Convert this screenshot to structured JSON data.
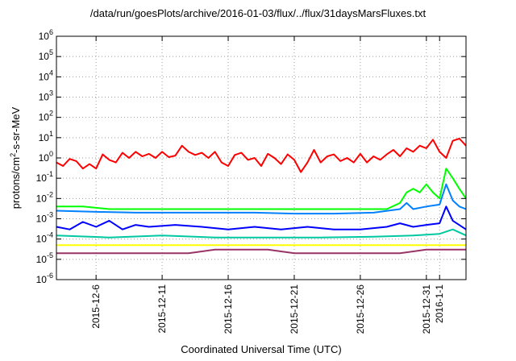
{
  "chart_data": {
    "type": "line",
    "title": "/data/run/goesPlots/archive/2016-01-03/flux/../flux/31daysMarsFluxes.txt",
    "xlabel": "Coordinated Universal Time (UTC)",
    "ylabel_parts": {
      "base": "protons/cm",
      "sup": "2",
      "rest": "-s-sr-MeV"
    },
    "y_scale": "log",
    "ylim": [
      1e-06,
      1000000.0
    ],
    "x_range": [
      "2015-12-03",
      "2016-01-03"
    ],
    "y_ticks": [
      {
        "exp": -6,
        "value": 1e-06
      },
      {
        "exp": -5,
        "value": 1e-05
      },
      {
        "exp": -4,
        "value": 0.0001
      },
      {
        "exp": -3,
        "value": 0.001
      },
      {
        "exp": -2,
        "value": 0.01
      },
      {
        "exp": -1,
        "value": 0.1
      },
      {
        "exp": 0,
        "value": 1
      },
      {
        "exp": 1,
        "value": 10
      },
      {
        "exp": 2,
        "value": 100
      },
      {
        "exp": 3,
        "value": 1000
      },
      {
        "exp": 4,
        "value": 10000.0
      },
      {
        "exp": 5,
        "value": 100000.0
      },
      {
        "exp": 6,
        "value": 1000000.0
      }
    ],
    "x_ticks": [
      {
        "date": "2015-12-06",
        "label": "2015-12-6"
      },
      {
        "date": "2015-12-11",
        "label": "2015-12-11"
      },
      {
        "date": "2015-12-16",
        "label": "2015-12-16"
      },
      {
        "date": "2015-12-21",
        "label": "2015-12-21"
      },
      {
        "date": "2015-12-26",
        "label": "2015-12-26"
      },
      {
        "date": "2015-12-31",
        "label": "2015-12-31"
      },
      {
        "date": "2016-01-01",
        "label": "2016-1-1"
      }
    ],
    "grid": true,
    "legend": "none",
    "series": [
      {
        "color": "#ff0000",
        "values": [
          [
            "2015-12-03",
            0.6
          ],
          [
            "2015-12-03.5",
            0.4
          ],
          [
            "2015-12-04",
            0.9
          ],
          [
            "2015-12-04.5",
            0.7
          ],
          [
            "2015-12-05",
            0.3
          ],
          [
            "2015-12-05.5",
            0.5
          ],
          [
            "2015-12-06",
            0.3
          ],
          [
            "2015-12-06.5",
            1.5
          ],
          [
            "2015-12-07",
            0.8
          ],
          [
            "2015-12-07.5",
            0.6
          ],
          [
            "2015-12-08",
            1.8
          ],
          [
            "2015-12-08.5",
            1.0
          ],
          [
            "2015-12-09",
            2.0
          ],
          [
            "2015-12-09.5",
            1.2
          ],
          [
            "2015-12-10",
            1.6
          ],
          [
            "2015-12-10.5",
            1.0
          ],
          [
            "2015-12-11",
            2.0
          ],
          [
            "2015-12-11.5",
            1.1
          ],
          [
            "2015-12-12",
            1.3
          ],
          [
            "2015-12-12.5",
            4.0
          ],
          [
            "2015-12-13",
            2.0
          ],
          [
            "2015-12-13.5",
            1.4
          ],
          [
            "2015-12-14",
            1.8
          ],
          [
            "2015-12-14.5",
            1.0
          ],
          [
            "2015-12-15",
            2.0
          ],
          [
            "2015-12-15.5",
            0.6
          ],
          [
            "2015-12-16",
            0.4
          ],
          [
            "2015-12-16.5",
            1.4
          ],
          [
            "2015-12-17",
            1.8
          ],
          [
            "2015-12-17.5",
            0.8
          ],
          [
            "2015-12-18",
            1.0
          ],
          [
            "2015-12-18.5",
            0.4
          ],
          [
            "2015-12-19",
            1.6
          ],
          [
            "2015-12-19.5",
            1.0
          ],
          [
            "2015-12-20",
            0.5
          ],
          [
            "2015-12-20.5",
            1.5
          ],
          [
            "2015-12-21",
            0.8
          ],
          [
            "2015-12-21.5",
            0.2
          ],
          [
            "2015-12-22",
            0.6
          ],
          [
            "2015-12-22.5",
            2.5
          ],
          [
            "2015-12-23",
            0.6
          ],
          [
            "2015-12-23.5",
            1.2
          ],
          [
            "2015-12-24",
            1.5
          ],
          [
            "2015-12-24.5",
            0.7
          ],
          [
            "2015-12-25",
            1.0
          ],
          [
            "2015-12-25.5",
            0.6
          ],
          [
            "2015-12-26",
            1.6
          ],
          [
            "2015-12-26.5",
            0.6
          ],
          [
            "2015-12-27",
            1.2
          ],
          [
            "2015-12-27.5",
            0.8
          ],
          [
            "2015-12-28",
            1.5
          ],
          [
            "2015-12-28.5",
            2.5
          ],
          [
            "2015-12-29",
            1.2
          ],
          [
            "2015-12-29.5",
            3.0
          ],
          [
            "2015-12-30",
            2.0
          ],
          [
            "2015-12-30.5",
            4.0
          ],
          [
            "2015-12-31",
            3.0
          ],
          [
            "2015-12-31.5",
            8.0
          ],
          [
            "2016-01-01",
            2.0
          ],
          [
            "2016-01-01.5",
            1.0
          ],
          [
            "2016-01-02",
            7.0
          ],
          [
            "2016-01-02.5",
            9.0
          ],
          [
            "2016-01-03",
            4.0
          ]
        ]
      },
      {
        "color": "#00ff00",
        "values": [
          [
            "2015-12-03",
            0.004
          ],
          [
            "2015-12-05",
            0.004
          ],
          [
            "2015-12-07",
            0.003
          ],
          [
            "2015-12-10",
            0.003
          ],
          [
            "2015-12-13",
            0.003
          ],
          [
            "2015-12-16",
            0.003
          ],
          [
            "2015-12-19",
            0.003
          ],
          [
            "2015-12-22",
            0.003
          ],
          [
            "2015-12-25",
            0.003
          ],
          [
            "2015-12-28",
            0.003
          ],
          [
            "2015-12-29",
            0.006
          ],
          [
            "2015-12-29.5",
            0.02
          ],
          [
            "2015-12-30",
            0.03
          ],
          [
            "2015-12-30.5",
            0.02
          ],
          [
            "2015-12-31",
            0.05
          ],
          [
            "2015-12-31.5",
            0.02
          ],
          [
            "2016-01-01",
            0.01
          ],
          [
            "2016-01-01.5",
            0.3
          ],
          [
            "2016-01-02",
            0.1
          ],
          [
            "2016-01-02.5",
            0.03
          ],
          [
            "2016-01-03",
            0.01
          ]
        ]
      },
      {
        "color": "#0080ff",
        "values": [
          [
            "2015-12-03",
            0.0025
          ],
          [
            "2015-12-06",
            0.0022
          ],
          [
            "2015-12-09",
            0.002
          ],
          [
            "2015-12-12",
            0.002
          ],
          [
            "2015-12-15",
            0.002
          ],
          [
            "2015-12-18",
            0.002
          ],
          [
            "2015-12-21",
            0.0018
          ],
          [
            "2015-12-24",
            0.0018
          ],
          [
            "2015-12-27",
            0.002
          ],
          [
            "2015-12-29",
            0.003
          ],
          [
            "2015-12-29.5",
            0.006
          ],
          [
            "2015-12-30",
            0.003
          ],
          [
            "2015-12-31",
            0.004
          ],
          [
            "2016-01-01",
            0.005
          ],
          [
            "2016-01-01.5",
            0.05
          ],
          [
            "2016-01-02",
            0.008
          ],
          [
            "2016-01-02.5",
            0.004
          ],
          [
            "2016-01-03",
            0.003
          ]
        ]
      },
      {
        "color": "#0000ff",
        "values": [
          [
            "2015-12-03",
            0.0004
          ],
          [
            "2015-12-04",
            0.0003
          ],
          [
            "2015-12-05",
            0.0007
          ],
          [
            "2015-12-06",
            0.0004
          ],
          [
            "2015-12-07",
            0.0008
          ],
          [
            "2015-12-08",
            0.0003
          ],
          [
            "2015-12-09",
            0.0005
          ],
          [
            "2015-12-10",
            0.0004
          ],
          [
            "2015-12-12",
            0.0005
          ],
          [
            "2015-12-14",
            0.0004
          ],
          [
            "2015-12-16",
            0.0003
          ],
          [
            "2015-12-18",
            0.0004
          ],
          [
            "2015-12-20",
            0.0003
          ],
          [
            "2015-12-22",
            0.0004
          ],
          [
            "2015-12-24",
            0.0003
          ],
          [
            "2015-12-26",
            0.0003
          ],
          [
            "2015-12-28",
            0.0004
          ],
          [
            "2015-12-29",
            0.0006
          ],
          [
            "2015-12-30",
            0.0004
          ],
          [
            "2015-12-31",
            0.0005
          ],
          [
            "2016-01-01",
            0.0006
          ],
          [
            "2016-01-01.5",
            0.004
          ],
          [
            "2016-01-02",
            0.0008
          ],
          [
            "2016-01-03",
            0.0003
          ]
        ]
      },
      {
        "color": "#00c8a0",
        "values": [
          [
            "2015-12-03",
            0.00015
          ],
          [
            "2015-12-07",
            0.00012
          ],
          [
            "2015-12-11",
            0.00015
          ],
          [
            "2015-12-15",
            0.00012
          ],
          [
            "2015-12-19",
            0.00012
          ],
          [
            "2015-12-23",
            0.00012
          ],
          [
            "2015-12-27",
            0.00013
          ],
          [
            "2015-12-30",
            0.00015
          ],
          [
            "2016-01-01",
            0.00018
          ],
          [
            "2016-01-02",
            0.0003
          ],
          [
            "2016-01-03",
            0.00015
          ]
        ]
      },
      {
        "color": "#ffff00",
        "values": [
          [
            "2015-12-03",
            5e-05
          ],
          [
            "2015-12-08",
            5e-05
          ],
          [
            "2015-12-13",
            5e-05
          ],
          [
            "2015-12-18",
            5e-05
          ],
          [
            "2015-12-23",
            5e-05
          ],
          [
            "2015-12-28",
            5e-05
          ],
          [
            "2016-01-03",
            5e-05
          ]
        ]
      },
      {
        "color": "#993366",
        "values": [
          [
            "2015-12-03",
            2e-05
          ],
          [
            "2015-12-05",
            2e-05
          ],
          [
            "2015-12-07",
            2e-05
          ],
          [
            "2015-12-09",
            2e-05
          ],
          [
            "2015-12-11",
            2e-05
          ],
          [
            "2015-12-13",
            2e-05
          ],
          [
            "2015-12-15",
            3e-05
          ],
          [
            "2015-12-17",
            3e-05
          ],
          [
            "2015-12-19",
            3e-05
          ],
          [
            "2015-12-21",
            2e-05
          ],
          [
            "2015-12-23",
            2e-05
          ],
          [
            "2015-12-25",
            2e-05
          ],
          [
            "2015-12-27",
            2e-05
          ],
          [
            "2015-12-29",
            2e-05
          ],
          [
            "2015-12-31",
            3e-05
          ],
          [
            "2016-01-03",
            3e-05
          ]
        ]
      }
    ]
  }
}
